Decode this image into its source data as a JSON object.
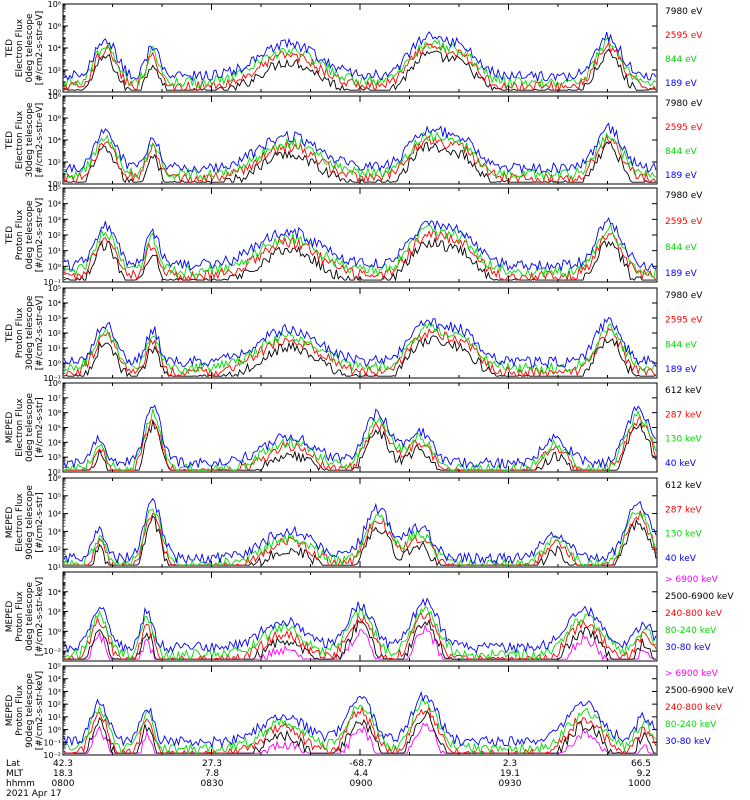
{
  "figure": {
    "date_label": "2021 Apr 17",
    "footer_rows": [
      "Lat",
      "MLT",
      "hhmm"
    ],
    "footer_columns": [
      {
        "time": "0800",
        "lat": "42.3",
        "mlt": "18.3"
      },
      {
        "time": "0830",
        "lat": "27.3",
        "mlt": "7.8"
      },
      {
        "time": "0900",
        "lat": "-68.7",
        "mlt": "4.4"
      },
      {
        "time": "0930",
        "lat": "2.3",
        "mlt": "19.1"
      },
      {
        "time": "1000",
        "lat": "66.5",
        "mlt": "9.2"
      }
    ]
  },
  "chart_data": [
    {
      "type": "line",
      "log_y": true,
      "ylim_exp": [
        0,
        8
      ],
      "y_tick_exps": [
        0,
        2,
        4,
        6,
        8
      ],
      "ylabel": [
        "TED",
        "Electron Flux",
        "0deg telescope",
        "[#/cm2-s-str-eV]"
      ],
      "x_time_range": [
        "0800",
        "1000"
      ],
      "series": [
        {
          "name": "7980 eV",
          "color": "#000000"
        },
        {
          "name": "2595 eV",
          "color": "#ff0000"
        },
        {
          "name": "844 eV",
          "color": "#00dd00"
        },
        {
          "name": "189 eV",
          "color": "#0000ff"
        }
      ]
    },
    {
      "type": "line",
      "log_y": true,
      "ylim_exp": [
        0,
        8
      ],
      "y_tick_exps": [
        0,
        2,
        4,
        6,
        8
      ],
      "ylabel": [
        "TED",
        "Electron Flux",
        "30deg telescope",
        "[#/cm2-s-str-eV]"
      ],
      "x_time_range": [
        "0800",
        "1000"
      ],
      "series": [
        {
          "name": "7980 eV",
          "color": "#000000"
        },
        {
          "name": "2595 eV",
          "color": "#ff0000"
        },
        {
          "name": "844 eV",
          "color": "#00dd00"
        },
        {
          "name": "189 eV",
          "color": "#0000ff"
        }
      ]
    },
    {
      "type": "line",
      "log_y": true,
      "ylim_exp": [
        -1,
        5
      ],
      "y_tick_exps": [
        -1,
        0,
        1,
        2,
        3,
        4,
        5
      ],
      "ylabel": [
        "TED",
        "Proton Flux",
        "0deg telescope",
        "[#/cm2-s-str-eV]"
      ],
      "x_time_range": [
        "0800",
        "1000"
      ],
      "series": [
        {
          "name": "7980 eV",
          "color": "#000000"
        },
        {
          "name": "2595 eV",
          "color": "#ff0000"
        },
        {
          "name": "844 eV",
          "color": "#00dd00"
        },
        {
          "name": "189 eV",
          "color": "#0000ff"
        }
      ]
    },
    {
      "type": "line",
      "log_y": true,
      "ylim_exp": [
        -1,
        5
      ],
      "y_tick_exps": [
        -1,
        0,
        1,
        2,
        3,
        4,
        5
      ],
      "ylabel": [
        "TED",
        "Proton Flux",
        "30deg telescope",
        "[#/cm2-s-str-eV]"
      ],
      "x_time_range": [
        "0800",
        "1000"
      ],
      "series": [
        {
          "name": "7980 eV",
          "color": "#000000"
        },
        {
          "name": "2595 eV",
          "color": "#ff0000"
        },
        {
          "name": "844 eV",
          "color": "#00dd00"
        },
        {
          "name": "189 eV",
          "color": "#0000ff"
        }
      ]
    },
    {
      "type": "line",
      "log_y": true,
      "ylim_exp": [
        2,
        8
      ],
      "y_tick_exps": [
        2,
        3,
        4,
        5,
        6,
        7,
        8
      ],
      "ylabel": [
        "MEPED",
        "Electron Flux",
        "0deg telescope",
        "[#/cm2-s-str]"
      ],
      "x_time_range": [
        "0800",
        "1000"
      ],
      "series": [
        {
          "name": "612 keV",
          "color": "#000000"
        },
        {
          "name": "287 keV",
          "color": "#ff0000"
        },
        {
          "name": "130 keV",
          "color": "#00dd00"
        },
        {
          "name": "40 keV",
          "color": "#0000ff"
        }
      ]
    },
    {
      "type": "line",
      "log_y": true,
      "ylim_exp": [
        1,
        6
      ],
      "y_tick_exps": [
        1,
        2,
        3,
        4,
        5,
        6
      ],
      "ylabel": [
        "MEPED",
        "Electron Flux",
        "90deg telescope",
        "[#/cm2-s-str]"
      ],
      "x_time_range": [
        "0800",
        "1000"
      ],
      "series": [
        {
          "name": "612 keV",
          "color": "#000000"
        },
        {
          "name": "287 keV",
          "color": "#ff0000"
        },
        {
          "name": "130 keV",
          "color": "#00dd00"
        },
        {
          "name": "40 keV",
          "color": "#0000ff"
        }
      ]
    },
    {
      "type": "line",
      "log_y": true,
      "ylim_exp": [
        -3,
        6
      ],
      "y_tick_exps": [
        -2,
        0,
        2,
        4
      ],
      "ylabel": [
        "MEPED",
        "Proton Flux",
        "0deg telescope",
        "[#/cm2-s-str-keV]"
      ],
      "x_time_range": [
        "0800",
        "1000"
      ],
      "series": [
        {
          "name": "> 6900 keV",
          "color": "#ff00ff"
        },
        {
          "name": "2500-6900 keV",
          "color": "#000000"
        },
        {
          "name": "240-800 keV",
          "color": "#ff0000"
        },
        {
          "name": "80-240 keV",
          "color": "#00dd00"
        },
        {
          "name": "30-80 keV",
          "color": "#0000ff"
        }
      ]
    },
    {
      "type": "line",
      "log_y": true,
      "ylim_exp": [
        -2,
        5
      ],
      "y_tick_exps": [
        -2,
        -1,
        0,
        1,
        2,
        3,
        4,
        5
      ],
      "ylabel": [
        "MEPED",
        "Proton Flux",
        "90deg telescope",
        "[#/cm2-s-str-keV]"
      ],
      "x_time_range": [
        "0800",
        "1000"
      ],
      "series": [
        {
          "name": "> 6900 keV",
          "color": "#ff00ff"
        },
        {
          "name": "2500-6900 keV",
          "color": "#000000"
        },
        {
          "name": "240-800 keV",
          "color": "#ff0000"
        },
        {
          "name": "80-240 keV",
          "color": "#00dd00"
        },
        {
          "name": "30-80 keV",
          "color": "#0000ff"
        }
      ]
    }
  ]
}
